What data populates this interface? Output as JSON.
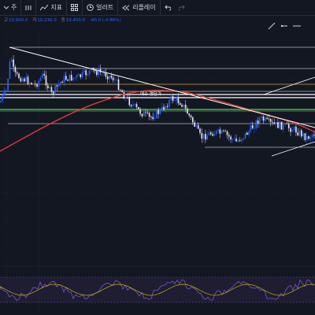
{
  "toolbar": {
    "items": [
      {
        "icon": "dropdown-icon",
        "label": "주"
      },
      {
        "icon": "sliders-icon",
        "label": ""
      },
      {
        "icon": "indicator-icon",
        "label": "지표"
      },
      {
        "icon": "layout-grid-icon",
        "label": ""
      },
      {
        "icon": "alert-clock-icon",
        "label": "얼러트"
      },
      {
        "icon": "replay-rewind-icon",
        "label": "리플레이"
      },
      {
        "icon": "undo-icon",
        "label": ""
      },
      {
        "icon": "redo-icon",
        "label": ""
      }
    ]
  },
  "ohlc": {
    "open_key": "",
    "open_val": "",
    "high_key": "고",
    "high_val": "10,900.0",
    "low_key": "저",
    "low_val": "10,230.0",
    "close_key": "종",
    "close_val": "10,400.0",
    "change": "-90.0 (-0.86%)"
  },
  "drawing_tools": [
    "trendline-icon",
    "horizontal-ray-icon",
    "horizontal-line-icon"
  ],
  "chart": {
    "annotation": "매수 평단가",
    "colors": {
      "background": "#131722",
      "candle_up": "#2962ff",
      "candle_down": "#e8e8ff",
      "moving_average": "#e53935",
      "trendline": "#ffffff",
      "support_line": "#4caf50",
      "level_line": "#b2b5be",
      "gold_level": "#c8a43c",
      "rsi_line": "#7e57c2",
      "signal_line": "#c8b400"
    }
  }
}
